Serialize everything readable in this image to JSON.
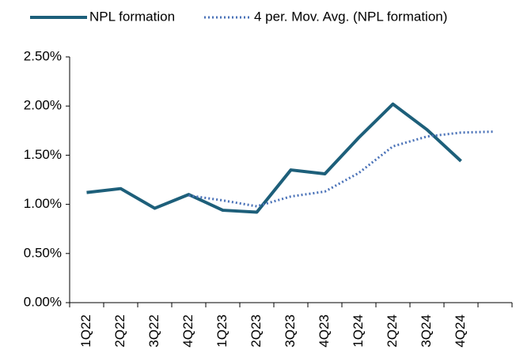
{
  "chart_data": {
    "type": "line",
    "categories": [
      "1Q22",
      "2Q22",
      "3Q22",
      "4Q22",
      "1Q23",
      "2Q23",
      "3Q23",
      "4Q23",
      "1Q24",
      "2Q24",
      "3Q24",
      "4Q24",
      null
    ],
    "series": [
      {
        "name": "NPL formation",
        "color": "#1d5f7a",
        "style": "solid",
        "values": [
          1.12,
          1.16,
          0.96,
          1.1,
          0.94,
          0.92,
          1.35,
          1.31,
          1.68,
          2.02,
          1.76,
          1.44,
          null
        ]
      },
      {
        "name": "4 per. Mov. Avg. (NPL formation)",
        "color": "#4a72b8",
        "style": "dotted",
        "values": [
          null,
          null,
          null,
          1.09,
          1.04,
          0.98,
          1.08,
          1.13,
          1.32,
          1.59,
          1.69,
          1.73,
          1.74
        ]
      }
    ],
    "ylim": [
      0,
      2.5
    ],
    "yticks": [
      {
        "value": 0,
        "label": "0.00%"
      },
      {
        "value": 0.5,
        "label": "0.50%"
      },
      {
        "value": 1,
        "label": "1.00%"
      },
      {
        "value": 1.5,
        "label": "1.50%"
      },
      {
        "value": 2,
        "label": "2.00%"
      },
      {
        "value": 2.5,
        "label": "2.50%"
      }
    ],
    "legend": "top"
  }
}
